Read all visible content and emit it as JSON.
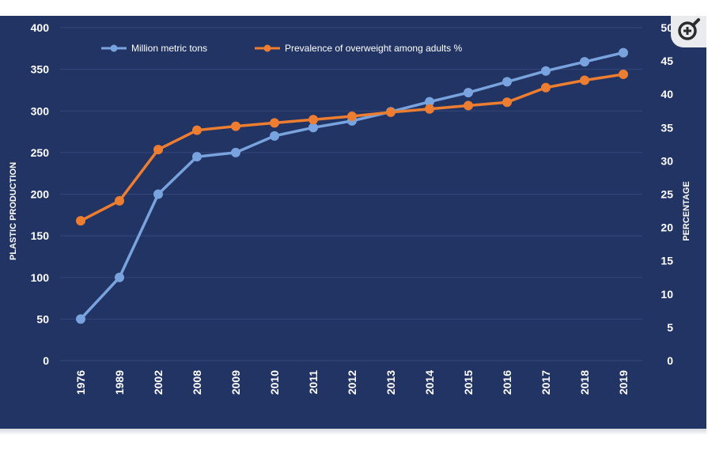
{
  "colors": {
    "panel": "#223463",
    "grid": "#35477a",
    "text": "#ffffff",
    "series1": "#78a3de",
    "series2": "#ec7d31"
  },
  "zoom": {
    "icon": "zoom-in-magnifier-icon"
  },
  "chart_data": {
    "type": "line",
    "title": "",
    "ylabel": "PLASTIC PRODUCTION",
    "y2label": "PERCENTAGE",
    "xlabel": "",
    "categories": [
      "1976",
      "1989",
      "2002",
      "2008",
      "2009",
      "2010",
      "2011",
      "2012",
      "2013",
      "2014",
      "2015",
      "2016",
      "2017",
      "2018",
      "2019"
    ],
    "ylim": [
      0,
      400
    ],
    "y2lim": [
      0,
      50
    ],
    "yticks": [
      0,
      50,
      100,
      150,
      200,
      250,
      300,
      350,
      400
    ],
    "y2ticks": [
      0,
      5,
      10,
      15,
      20,
      25,
      30,
      35,
      40,
      45,
      50
    ],
    "legend_position": "top",
    "grid": true,
    "series": [
      {
        "name": "Million metric tons",
        "axis": "left",
        "color": "#78a3de",
        "values": [
          50,
          100,
          200,
          245,
          250,
          270,
          280,
          288,
          299,
          311,
          322,
          335,
          348,
          359,
          370
        ]
      },
      {
        "name": "Prevalence of overweight among adults %",
        "axis": "right",
        "color": "#ec7d31",
        "values": [
          21,
          24,
          31.7,
          34.6,
          35.2,
          35.7,
          36.2,
          36.7,
          37.3,
          37.8,
          38.3,
          38.8,
          41,
          42.1,
          43
        ]
      }
    ]
  }
}
